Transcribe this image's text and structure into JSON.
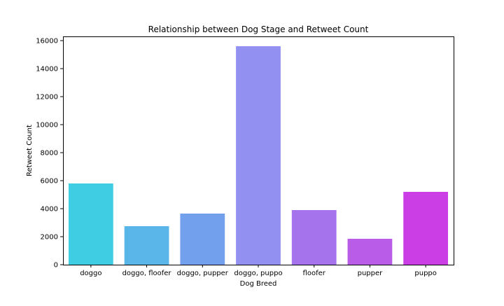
{
  "chart_data": {
    "type": "bar",
    "title": "Relationship between Dog Stage and Retweet Count",
    "xlabel": "Dog Breed",
    "ylabel": "Retweet Count",
    "categories": [
      "doggo",
      "doggo, floofer",
      "doggo, pupper",
      "doggo, puppo",
      "floofer",
      "pupper",
      "puppo"
    ],
    "values": [
      5800,
      2750,
      3650,
      15600,
      3900,
      1850,
      5200
    ],
    "ylim": [
      0,
      16300
    ],
    "yticks": [
      0,
      2000,
      4000,
      6000,
      8000,
      10000,
      12000,
      14000,
      16000
    ],
    "grid": false,
    "colors": [
      "#3ecde3",
      "#5ab6e8",
      "#73a0ec",
      "#9290f0",
      "#a574ec",
      "#b95de8",
      "#cb3ee6"
    ]
  }
}
